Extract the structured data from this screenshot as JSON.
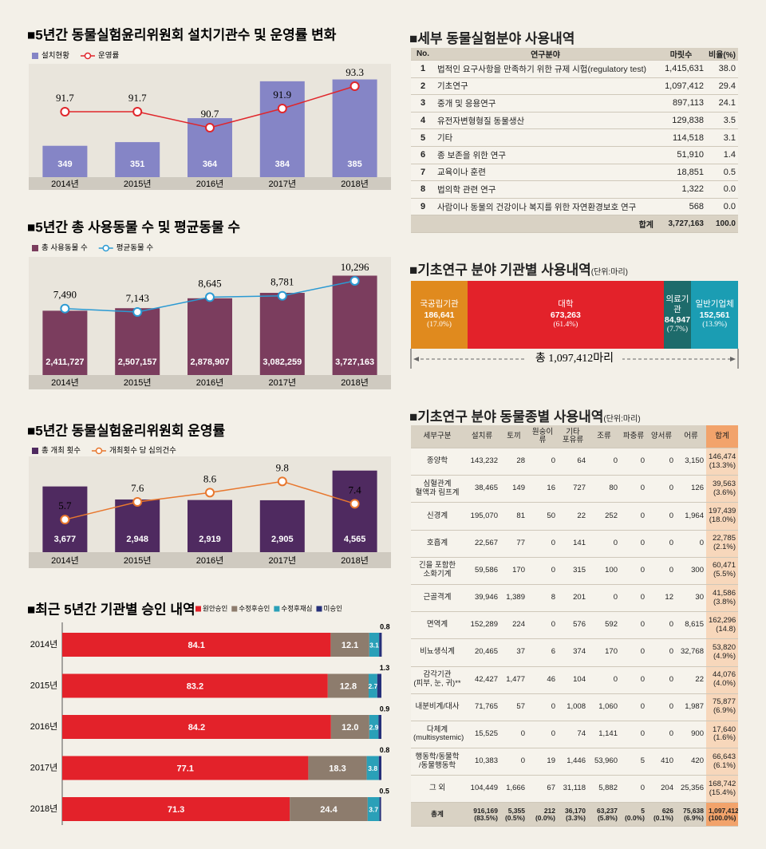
{
  "chart_data": [
    {
      "type": "bar-line",
      "title": "■5년간 동물실험윤리위원회 설치기관수 및 운영률 변화",
      "categories": [
        "2014년",
        "2015년",
        "2016년",
        "2017년",
        "2018년"
      ],
      "series": [
        {
          "name": "설치현황",
          "color": "#8585c6",
          "values": [
            349,
            351,
            364,
            384,
            385
          ]
        },
        {
          "name": "운영률",
          "color": "#e0262b",
          "axis": "y2",
          "values": [
            91.7,
            91.7,
            90.7,
            91.9,
            93.3
          ]
        }
      ],
      "ylim": [
        332,
        390
      ],
      "y2lim": [
        87.6,
        94.3
      ]
    },
    {
      "type": "bar-line",
      "title": "■5년간 총 사용동물 수 및 평균동물 수",
      "categories": [
        "2014년",
        "2015년",
        "2016년",
        "2017년",
        "2018년"
      ],
      "series": [
        {
          "name": "총 사용동물 수",
          "color": "#7b3d5e",
          "values": [
            2411727,
            2507157,
            2878907,
            3082259,
            3727163
          ],
          "value_labels": [
            "2,411,727",
            "2,507,157",
            "2,878,907",
            "3,082,259",
            "3,727,163"
          ]
        },
        {
          "name": "평균동물 수",
          "color": "#2b9ad3",
          "axis": "y2",
          "values": [
            7490,
            7143,
            8645,
            8781,
            10296
          ],
          "value_labels": [
            "7,490",
            "7,143",
            "8,645",
            "8,781",
            "10,296"
          ]
        }
      ],
      "ylim": [
        0,
        4190000
      ],
      "y2lim": [
        760,
        12070
      ]
    },
    {
      "type": "bar-line",
      "title": "■5년간 동물실험윤리위원회 운영률",
      "categories": [
        "2014년",
        "2015년",
        "2016년",
        "2017년",
        "2018년"
      ],
      "series": [
        {
          "name": "총 개최 횟수",
          "color": "#4f2a60",
          "values": [
            3677,
            2948,
            2919,
            2905,
            4565
          ],
          "value_labels": [
            "3,677",
            "2,948",
            "2,919",
            "2,905",
            "4,565"
          ]
        },
        {
          "name": "개최횟수 당 심의건수",
          "color": "#e8772e",
          "axis": "y2",
          "values": [
            5.7,
            7.6,
            8.6,
            9.8,
            7.4
          ]
        }
      ],
      "ylim": [
        0,
        5000
      ],
      "y2lim": [
        2.2,
        11.8
      ]
    },
    {
      "type": "hbar-stacked",
      "title": "■최근 5년간 기관별 승인 내역",
      "categories": [
        "2014년",
        "2015년",
        "2016년",
        "2017년",
        "2018년"
      ],
      "series": [
        {
          "name": "원안승인",
          "color": "#e3222a",
          "values": [
            84.1,
            83.2,
            84.2,
            77.1,
            71.3
          ]
        },
        {
          "name": "수정후승인",
          "color": "#8d7c6d",
          "values": [
            12.1,
            12.8,
            12.0,
            18.3,
            24.4
          ],
          "value_labels": [
            "12.1",
            "12.8",
            "12.0",
            "18.3",
            "24.4"
          ]
        },
        {
          "name": "수정후재심",
          "color": "#2aa0b8",
          "values": [
            3.1,
            2.7,
            2.9,
            3.8,
            3.7
          ]
        },
        {
          "name": "미승인",
          "color": "#26307a",
          "values": [
            0.8,
            1.3,
            0.9,
            0.8,
            0.5
          ]
        }
      ],
      "xlim": [
        0,
        100
      ]
    },
    {
      "type": "proportion-bar",
      "title": "■기초연구 분야 기관별 사용내역",
      "unit": "(단위:마리)",
      "categories": [
        "국공립기관",
        "대학",
        "의료기관",
        "일반기업체"
      ],
      "values": [
        186641,
        673263,
        84947,
        152561
      ],
      "value_labels": [
        "186,641",
        "673,263",
        "84,947",
        "152,561"
      ],
      "share_labels": [
        "(17.0%)",
        "(61.4%)",
        "(7.7%)",
        "(13.9%)"
      ],
      "colors": [
        "#e08a1e",
        "#e3222a",
        "#1d6b6b",
        "#1b9db3"
      ],
      "total_label": "총 1,097,412마리"
    }
  ],
  "tables": [
    {
      "title": "■세부 동물실험분야 사용내역",
      "headers": [
        "No.",
        "연구분야",
        "마릿수",
        "비율(%)"
      ],
      "rows": [
        [
          "1",
          "법적인 요구사항을 만족하기 위한 규제 시험(regulatory test)",
          "1,415,631",
          "38.0"
        ],
        [
          "2",
          "기초연구",
          "1,097,412",
          "29.4"
        ],
        [
          "3",
          "중개 및 응용연구",
          "897,113",
          "24.1"
        ],
        [
          "4",
          "유전자변형형질 동물생산",
          "129,838",
          "3.5"
        ],
        [
          "5",
          "기타",
          "114,518",
          "3.1"
        ],
        [
          "6",
          "종 보존을 위한 연구",
          "51,910",
          "1.4"
        ],
        [
          "7",
          "교육이나 훈련",
          "18,851",
          "0.5"
        ],
        [
          "8",
          "법의학 관련 연구",
          "1,322",
          "0.0"
        ],
        [
          "9",
          "사람이나 동물의 건강이나 복지를 위한 자연환경보호 연구",
          "568",
          "0.0"
        ]
      ],
      "total": [
        "합계",
        "3,727,163",
        "100.0"
      ]
    },
    {
      "title": "■기초연구 분야 동물종별 사용내역",
      "unit": "(단위:마리)",
      "headers": [
        "세부구분",
        "설치류",
        "토끼",
        "원숭이류",
        "기타\n포유류",
        "조류",
        "파충류",
        "양서류",
        "어류",
        "합계"
      ],
      "rows": [
        [
          "종양학",
          "143,232",
          "28",
          "0",
          "64",
          "0",
          "0",
          "0",
          "3,150",
          "146,474\n(13.3%)"
        ],
        [
          "심혈관계\n혈액과 림프계",
          "38,465",
          "149",
          "16",
          "727",
          "80",
          "0",
          "0",
          "126",
          "39,563\n(3.6%)"
        ],
        [
          "신경계",
          "195,070",
          "81",
          "50",
          "22",
          "252",
          "0",
          "0",
          "1,964",
          "197,439\n(18.0%)"
        ],
        [
          "호흡계",
          "22,567",
          "77",
          "0",
          "141",
          "0",
          "0",
          "0",
          "0",
          "22,785\n(2.1%)"
        ],
        [
          "긴을 포함한\n소화기계",
          "59,586",
          "170",
          "0",
          "315",
          "100",
          "0",
          "0",
          "300",
          "60,471\n(5.5%)"
        ],
        [
          "근골격계",
          "39,946",
          "1,389",
          "8",
          "201",
          "0",
          "0",
          "12",
          "30",
          "41,586\n(3.8%)"
        ],
        [
          "면역계",
          "152,289",
          "224",
          "0",
          "576",
          "592",
          "0",
          "0",
          "8,615",
          "162,296\n(14.8)"
        ],
        [
          "비뇨생식계",
          "20,465",
          "37",
          "6",
          "374",
          "170",
          "0",
          "0",
          "32,768",
          "53,820\n(4.9%)"
        ],
        [
          "감각기관\n(피부, 눈, 귀)**",
          "42,427",
          "1,477",
          "46",
          "104",
          "0",
          "0",
          "0",
          "22",
          "44,076\n(4.0%)"
        ],
        [
          "내분비계/대사",
          "71,765",
          "57",
          "0",
          "1,008",
          "1,060",
          "0",
          "0",
          "1,987",
          "75,877\n(6.9%)"
        ],
        [
          "다체계\n(multisystemic)",
          "15,525",
          "0",
          "0",
          "74",
          "1,141",
          "0",
          "0",
          "900",
          "17,640\n(1.6%)"
        ],
        [
          "행동학/동물학\n/동물행동학",
          "10,383",
          "0",
          "19",
          "1,446",
          "53,960",
          "5",
          "410",
          "420",
          "66,643\n(6.1%)"
        ],
        [
          "그 외",
          "104,449",
          "1,666",
          "67",
          "31,118",
          "5,882",
          "0",
          "204",
          "25,356",
          "168,742\n(15.4%)"
        ]
      ],
      "total": [
        "총계",
        "916,169\n(83.5%)",
        "5,355\n(0.5%)",
        "212\n(0.0%)",
        "36,170\n(3.3%)",
        "63,237\n(5.8%)",
        "5\n(0.0%)",
        "626\n(0.1%)",
        "75,638\n(6.9%)",
        "1,097,412\n(100.0%)"
      ]
    }
  ]
}
